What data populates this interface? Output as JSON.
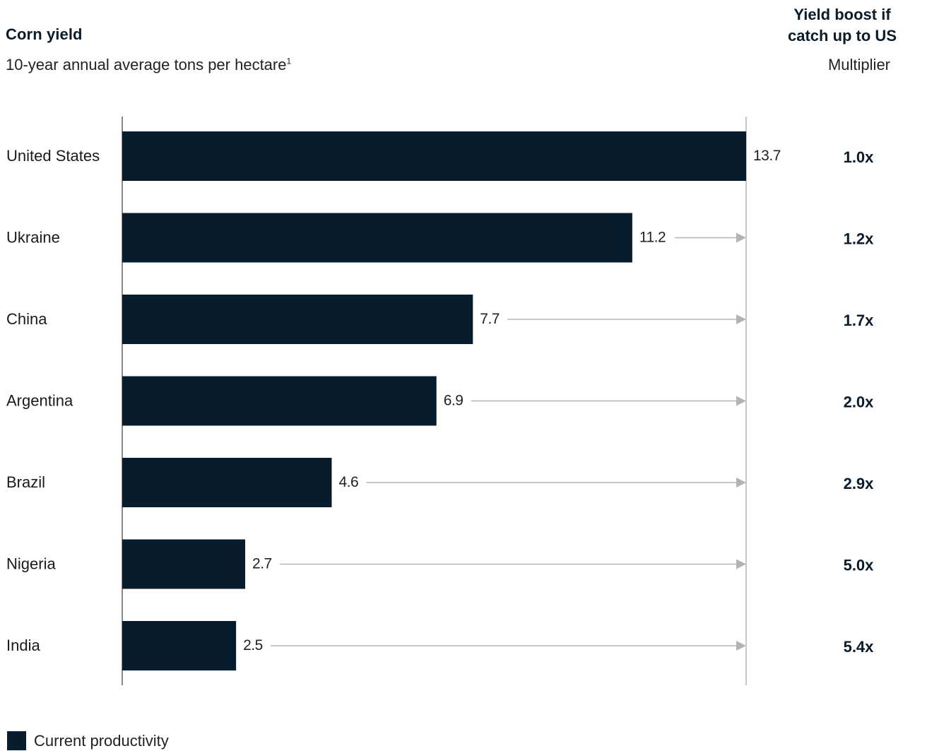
{
  "header": {
    "title": "Corn yield",
    "subtitle": "10-year annual average tons per hectare",
    "subtitle_footnote": "1",
    "right_title_line1": "Yield boost if",
    "right_title_line2": "catch up to US",
    "right_subtitle": "Multiplier"
  },
  "legend": {
    "label": "Current productivity",
    "color": "#071d2d"
  },
  "colors": {
    "bar": "#071d2d",
    "axis": "#8a8a8a",
    "arrow": "#b3b3b3"
  },
  "chart_data": {
    "type": "bar",
    "orientation": "horizontal",
    "title": "Corn yield",
    "xlabel": "10-year annual average tons per hectare",
    "categories": [
      "United States",
      "Ukraine",
      "China",
      "Argentina",
      "Brazil",
      "Nigeria",
      "India"
    ],
    "values": [
      13.7,
      11.2,
      7.7,
      6.9,
      4.6,
      2.7,
      2.5
    ],
    "value_labels": [
      "13.7",
      "11.2",
      "7.7",
      "6.9",
      "4.6",
      "2.7",
      "2.5"
    ],
    "multipliers": [
      "1.0x",
      "1.2x",
      "1.7x",
      "2.0x",
      "2.9x",
      "5.0x",
      "5.4x"
    ],
    "xlim": [
      0,
      13.7
    ],
    "grid": false,
    "legend": "bottom-left",
    "series": [
      {
        "name": "Current productivity",
        "values": [
          13.7,
          11.2,
          7.7,
          6.9,
          4.6,
          2.7,
          2.5
        ]
      }
    ]
  }
}
